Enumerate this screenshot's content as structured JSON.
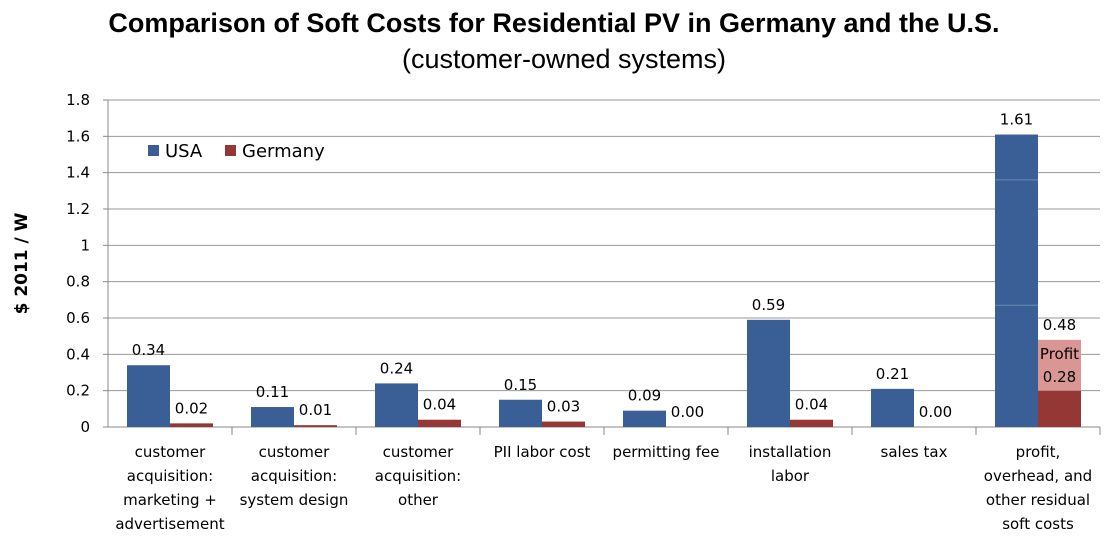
{
  "chart_data": {
    "type": "bar",
    "title": "Comparison of Soft Costs for Residential PV in Germany and the U.S.",
    "subtitle": "(customer-owned systems)",
    "ylabel": "$ 2011 / W",
    "xlabel": "",
    "ylim": [
      0,
      1.8
    ],
    "yticks": [
      "0",
      "0.2",
      "0.4",
      "0.6",
      "0.8",
      "1",
      "1.2",
      "1.4",
      "1.6",
      "1.8"
    ],
    "grid": true,
    "legend": "top-left",
    "categories": [
      [
        "customer",
        "acquisition:",
        "marketing +",
        "advertisement"
      ],
      [
        "customer",
        "acquisition:",
        "system design"
      ],
      [
        "customer",
        "acquisition:",
        "other"
      ],
      [
        "PII labor cost"
      ],
      [
        "permitting fee"
      ],
      [
        "installation",
        "labor"
      ],
      [
        "sales tax"
      ],
      [
        "profit,",
        "overhead, and",
        "other residual",
        "soft costs"
      ]
    ],
    "series": [
      {
        "name": "USA",
        "color": "#3A5F96",
        "values": [
          0.34,
          0.11,
          0.24,
          0.15,
          0.09,
          0.59,
          0.21,
          1.61
        ],
        "labels": [
          "0.34",
          "0.11",
          "0.24",
          "0.15",
          "0.09",
          "0.59",
          "0.21",
          "1.61"
        ]
      },
      {
        "name": "Germany",
        "color": "#953735",
        "values": [
          0.02,
          0.01,
          0.04,
          0.03,
          0.0,
          0.04,
          0.0,
          0.48
        ],
        "labels": [
          "0.02",
          "0.01",
          "0.04",
          "0.03",
          "0.00",
          "0.04",
          "0.00",
          "0.48"
        ]
      }
    ],
    "germany_profit": {
      "label": "Profit",
      "value": 0.28,
      "value_label": "0.28",
      "base": 0.2,
      "color": "#D99694"
    }
  }
}
